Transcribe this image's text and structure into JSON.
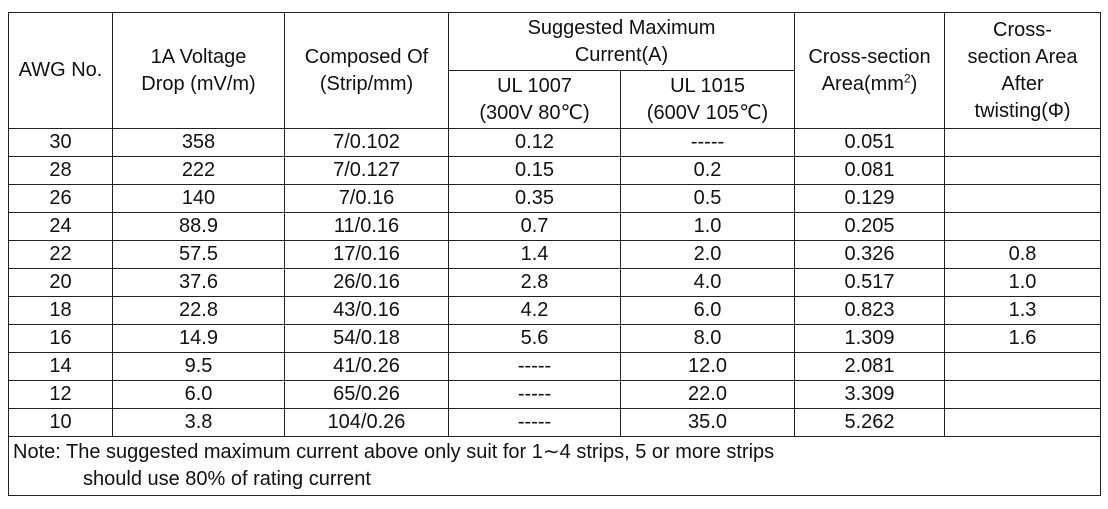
{
  "headers": {
    "awg": "AWG No.",
    "voltage_drop": [
      "1A Voltage",
      "Drop (mV/m)"
    ],
    "composed_of": [
      "Composed Of",
      "(Strip/mm)"
    ],
    "suggested_max": [
      "Suggested Maximum",
      "Current(A)"
    ],
    "ul1007": [
      "UL 1007",
      "(300V 80℃)"
    ],
    "ul1015": [
      "UL 1015",
      "(600V 105℃)"
    ],
    "cross_section_prefix": "Cross-section",
    "cross_section_unit": "Area(mm",
    "cross_section_sup": "2",
    "cross_section_close": ")",
    "twisting": [
      "Cross-",
      "section Area",
      "After",
      "twisting(Φ)"
    ]
  },
  "rows": [
    {
      "awg": "30",
      "drop": "358",
      "composed": "7/0.102",
      "ul1007": "0.12",
      "ul1015": "-----",
      "area": "0.051",
      "twist": ""
    },
    {
      "awg": "28",
      "drop": "222",
      "composed": "7/0.127",
      "ul1007": "0.15",
      "ul1015": "0.2",
      "area": "0.081",
      "twist": ""
    },
    {
      "awg": "26",
      "drop": "140",
      "composed": "7/0.16",
      "ul1007": "0.35",
      "ul1015": "0.5",
      "area": "0.129",
      "twist": ""
    },
    {
      "awg": "24",
      "drop": "88.9",
      "composed": "11/0.16",
      "ul1007": "0.7",
      "ul1015": "1.0",
      "area": "0.205",
      "twist": ""
    },
    {
      "awg": "22",
      "drop": "57.5",
      "composed": "17/0.16",
      "ul1007": "1.4",
      "ul1015": "2.0",
      "area": "0.326",
      "twist": "0.8"
    },
    {
      "awg": "20",
      "drop": "37.6",
      "composed": "26/0.16",
      "ul1007": "2.8",
      "ul1015": "4.0",
      "area": "0.517",
      "twist": "1.0"
    },
    {
      "awg": "18",
      "drop": "22.8",
      "composed": "43/0.16",
      "ul1007": "4.2",
      "ul1015": "6.0",
      "area": "0.823",
      "twist": "1.3"
    },
    {
      "awg": "16",
      "drop": "14.9",
      "composed": "54/0.18",
      "ul1007": "5.6",
      "ul1015": "8.0",
      "area": "1.309",
      "twist": "1.6"
    },
    {
      "awg": "14",
      "drop": "9.5",
      "composed": "41/0.26",
      "ul1007": "-----",
      "ul1015": "12.0",
      "area": "2.081",
      "twist": ""
    },
    {
      "awg": "12",
      "drop": "6.0",
      "composed": "65/0.26",
      "ul1007": "-----",
      "ul1015": "22.0",
      "area": "3.309",
      "twist": ""
    },
    {
      "awg": "10",
      "drop": "3.8",
      "composed": "104/0.26",
      "ul1007": "-----",
      "ul1015": "35.0",
      "area": "5.262",
      "twist": ""
    }
  ],
  "note": {
    "line1": "Note: The suggested maximum current above only suit for 1∼4 strips, 5 or more strips",
    "line2": "should use 80% of rating current"
  }
}
